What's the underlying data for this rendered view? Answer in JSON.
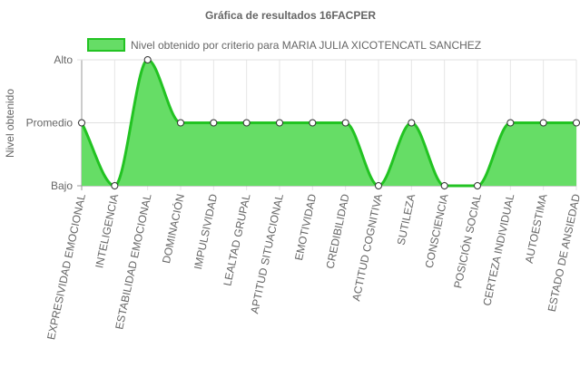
{
  "chart_data": {
    "type": "area",
    "title": "Gráfica de resultados 16FACPER",
    "ylabel": "Nivel obtenido",
    "xlabel": "",
    "y_levels": [
      "Bajo",
      "Promedio",
      "Alto"
    ],
    "ylim": [
      0,
      2
    ],
    "legend_position": "top",
    "grid": true,
    "categories": [
      "EXPRESIVIDAD EMOCIONAL",
      "INTELIGENCIA",
      "ESTABILIDAD EMOCIONAL",
      "DOMINACIÓN",
      "IMPULSIVIDAD",
      "LEALTAD GRUPAL",
      "APTITUD SITUACIONAL",
      "EMOTIVIDAD",
      "CREDIBILIDAD",
      "ACTITUD COGNITIVA",
      "SUTILEZA",
      "CONSCIENCIA",
      "POSICIÓN SOCIAL",
      "CERTEZA INDIVIDUAL",
      "AUTOESTIMA",
      "ESTADO DE ANSIEDAD"
    ],
    "series": [
      {
        "name": "Nivel obtenido por criterio para MARIA JULIA XICOTENCATL SANCHEZ",
        "values": [
          1,
          0,
          2,
          1,
          1,
          1,
          1,
          1,
          1,
          0,
          1,
          0,
          0,
          1,
          1,
          1
        ],
        "line_color": "#22c322",
        "fill_color": "#66dd66"
      }
    ]
  }
}
